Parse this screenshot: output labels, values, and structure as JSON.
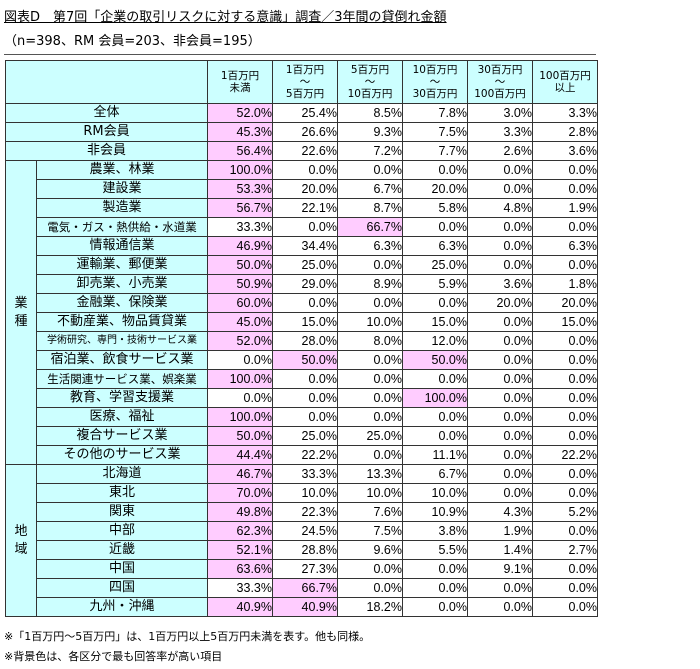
{
  "title": {
    "main": "図表D　第7回「企業の取引リスクに対する意識」調査／3年間の貸倒れ金額",
    "sample": "（n=398、RM 会員=203、非会員=195）"
  },
  "columns": [
    {
      "line1": "1百万円",
      "line2": "",
      "line3": "未満"
    },
    {
      "line1": "1百万円",
      "line2": "～",
      "line3": "5百万円"
    },
    {
      "line1": "5百万円",
      "line2": "～",
      "line3": "10百万円"
    },
    {
      "line1": "10百万円",
      "line2": "～",
      "line3": "30百万円"
    },
    {
      "line1": "30百万円",
      "line2": "～",
      "line3": "100百万円"
    },
    {
      "line1": "100百万円",
      "line2": "",
      "line3": "以上"
    }
  ],
  "colors": {
    "header_bg": "#ccffff",
    "highlight": "#ffccff",
    "border": "#333333"
  },
  "summary_rows": [
    {
      "label": "全体",
      "values": [
        "52.0%",
        "25.4%",
        "8.5%",
        "7.8%",
        "3.0%",
        "3.3%"
      ],
      "highlight": [
        0
      ]
    },
    {
      "label": "RM会員",
      "values": [
        "45.3%",
        "26.6%",
        "9.3%",
        "7.5%",
        "3.3%",
        "2.8%"
      ],
      "highlight": [
        0
      ]
    },
    {
      "label": "非会員",
      "values": [
        "56.4%",
        "22.6%",
        "7.2%",
        "7.7%",
        "2.6%",
        "3.6%"
      ],
      "highlight": [
        0
      ]
    }
  ],
  "industry": {
    "section_label": "業種",
    "rows": [
      {
        "label": "農業、林業",
        "values": [
          "100.0%",
          "0.0%",
          "0.0%",
          "0.0%",
          "0.0%",
          "0.0%"
        ],
        "highlight": [
          0
        ]
      },
      {
        "label": "建設業",
        "values": [
          "53.3%",
          "20.0%",
          "6.7%",
          "20.0%",
          "0.0%",
          "0.0%"
        ],
        "highlight": [
          0
        ]
      },
      {
        "label": "製造業",
        "values": [
          "56.7%",
          "22.1%",
          "8.7%",
          "5.8%",
          "4.8%",
          "1.9%"
        ],
        "highlight": [
          0
        ]
      },
      {
        "label": "電気・ガス・熱供給・水道業",
        "values": [
          "33.3%",
          "0.0%",
          "66.7%",
          "0.0%",
          "0.0%",
          "0.0%"
        ],
        "highlight": [
          2
        ]
      },
      {
        "label": "情報通信業",
        "values": [
          "46.9%",
          "34.4%",
          "6.3%",
          "6.3%",
          "0.0%",
          "6.3%"
        ],
        "highlight": [
          0
        ]
      },
      {
        "label": "運輸業、郵便業",
        "values": [
          "50.0%",
          "25.0%",
          "0.0%",
          "25.0%",
          "0.0%",
          "0.0%"
        ],
        "highlight": [
          0
        ]
      },
      {
        "label": "卸売業、小売業",
        "values": [
          "50.9%",
          "29.0%",
          "8.9%",
          "5.9%",
          "3.6%",
          "1.8%"
        ],
        "highlight": [
          0
        ]
      },
      {
        "label": "金融業、保険業",
        "values": [
          "60.0%",
          "0.0%",
          "0.0%",
          "0.0%",
          "20.0%",
          "20.0%"
        ],
        "highlight": [
          0
        ]
      },
      {
        "label": "不動産業、物品賃貸業",
        "values": [
          "45.0%",
          "15.0%",
          "10.0%",
          "15.0%",
          "0.0%",
          "15.0%"
        ],
        "highlight": [
          0
        ]
      },
      {
        "label": "学術研究、専門・技術サービス業",
        "values": [
          "52.0%",
          "28.0%",
          "8.0%",
          "12.0%",
          "0.0%",
          "0.0%"
        ],
        "highlight": [
          0
        ]
      },
      {
        "label": "宿泊業、飲食サービス業",
        "values": [
          "0.0%",
          "50.0%",
          "0.0%",
          "50.0%",
          "0.0%",
          "0.0%"
        ],
        "highlight": [
          1,
          3
        ]
      },
      {
        "label": "生活関連サービス業、娯楽業",
        "values": [
          "100.0%",
          "0.0%",
          "0.0%",
          "0.0%",
          "0.0%",
          "0.0%"
        ],
        "highlight": [
          0
        ]
      },
      {
        "label": "教育、学習支援業",
        "values": [
          "0.0%",
          "0.0%",
          "0.0%",
          "100.0%",
          "0.0%",
          "0.0%"
        ],
        "highlight": [
          3
        ]
      },
      {
        "label": "医療、福祉",
        "values": [
          "100.0%",
          "0.0%",
          "0.0%",
          "0.0%",
          "0.0%",
          "0.0%"
        ],
        "highlight": [
          0
        ]
      },
      {
        "label": "複合サービス業",
        "values": [
          "50.0%",
          "25.0%",
          "25.0%",
          "0.0%",
          "0.0%",
          "0.0%"
        ],
        "highlight": [
          0
        ]
      },
      {
        "label": "その他のサービス業",
        "values": [
          "44.4%",
          "22.2%",
          "0.0%",
          "11.1%",
          "0.0%",
          "22.2%"
        ],
        "highlight": [
          0
        ]
      }
    ]
  },
  "region": {
    "section_label": "地域",
    "rows": [
      {
        "label": "北海道",
        "values": [
          "46.7%",
          "33.3%",
          "13.3%",
          "6.7%",
          "0.0%",
          "0.0%"
        ],
        "highlight": [
          0
        ]
      },
      {
        "label": "東北",
        "values": [
          "70.0%",
          "10.0%",
          "10.0%",
          "10.0%",
          "0.0%",
          "0.0%"
        ],
        "highlight": [
          0
        ]
      },
      {
        "label": "関東",
        "values": [
          "49.8%",
          "22.3%",
          "7.6%",
          "10.9%",
          "4.3%",
          "5.2%"
        ],
        "highlight": [
          0
        ]
      },
      {
        "label": "中部",
        "values": [
          "62.3%",
          "24.5%",
          "7.5%",
          "3.8%",
          "1.9%",
          "0.0%"
        ],
        "highlight": [
          0
        ]
      },
      {
        "label": "近畿",
        "values": [
          "52.1%",
          "28.8%",
          "9.6%",
          "5.5%",
          "1.4%",
          "2.7%"
        ],
        "highlight": [
          0
        ]
      },
      {
        "label": "中国",
        "values": [
          "63.6%",
          "27.3%",
          "0.0%",
          "0.0%",
          "9.1%",
          "0.0%"
        ],
        "highlight": [
          0
        ]
      },
      {
        "label": "四国",
        "values": [
          "33.3%",
          "66.7%",
          "0.0%",
          "0.0%",
          "0.0%",
          "0.0%"
        ],
        "highlight": [
          1
        ]
      },
      {
        "label": "九州・沖縄",
        "values": [
          "40.9%",
          "40.9%",
          "18.2%",
          "0.0%",
          "0.0%",
          "0.0%"
        ],
        "highlight": [
          0,
          1
        ]
      }
    ]
  },
  "notes": [
    "※「1百万円～5百万円」は、1百万円以上5百万円未満を表す。他も同様。",
    "※背景色は、各区分で最も回答率が高い項目"
  ]
}
